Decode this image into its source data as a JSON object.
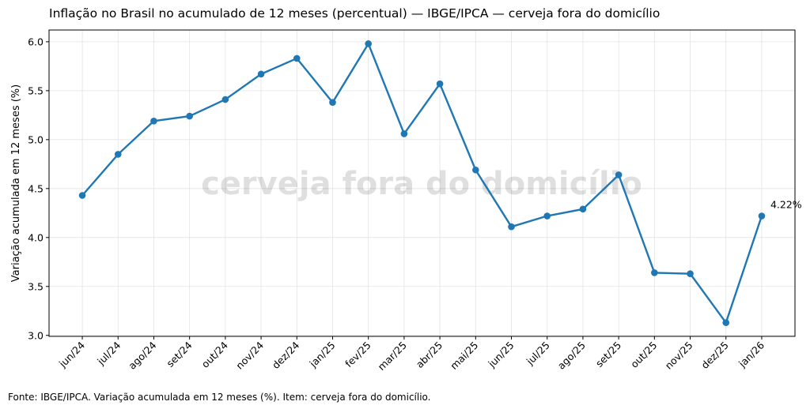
{
  "chart_data": {
    "type": "line",
    "title": "Inflação no Brasil no acumulado de 12 meses (percentual) — IBGE/IPCA — cerveja fora do domicílio",
    "xlabel": "",
    "ylabel": "Variação acumulada em 12 meses (%)",
    "watermark": "cerveja fora do domicílio",
    "footer": "Fonte: IBGE/IPCA. Variação acumulada em 12 meses (%). Item: cerveja fora do domicílio.",
    "categories": [
      "jun/24",
      "jul/24",
      "ago/24",
      "set/24",
      "out/24",
      "nov/24",
      "dez/24",
      "jan/25",
      "fev/25",
      "mar/25",
      "abr/25",
      "mai/25",
      "jun/25",
      "jul/25",
      "ago/25",
      "set/25",
      "out/25",
      "nov/25",
      "dez/25",
      "jan/26"
    ],
    "series": [
      {
        "name": "cerveja fora do domicílio",
        "color": "#1f77b4",
        "values": [
          4.43,
          4.85,
          5.19,
          5.24,
          5.41,
          5.67,
          5.83,
          5.38,
          5.98,
          5.06,
          5.57,
          4.69,
          4.11,
          4.22,
          4.29,
          4.64,
          3.64,
          3.63,
          3.13,
          4.22
        ]
      }
    ],
    "last_label": "4.22%",
    "yticks": [
      "3.0",
      "3.5",
      "4.0",
      "4.5",
      "5.0",
      "5.5",
      "6.0"
    ],
    "ylim": [
      2.99,
      6.12
    ],
    "grid": true
  }
}
